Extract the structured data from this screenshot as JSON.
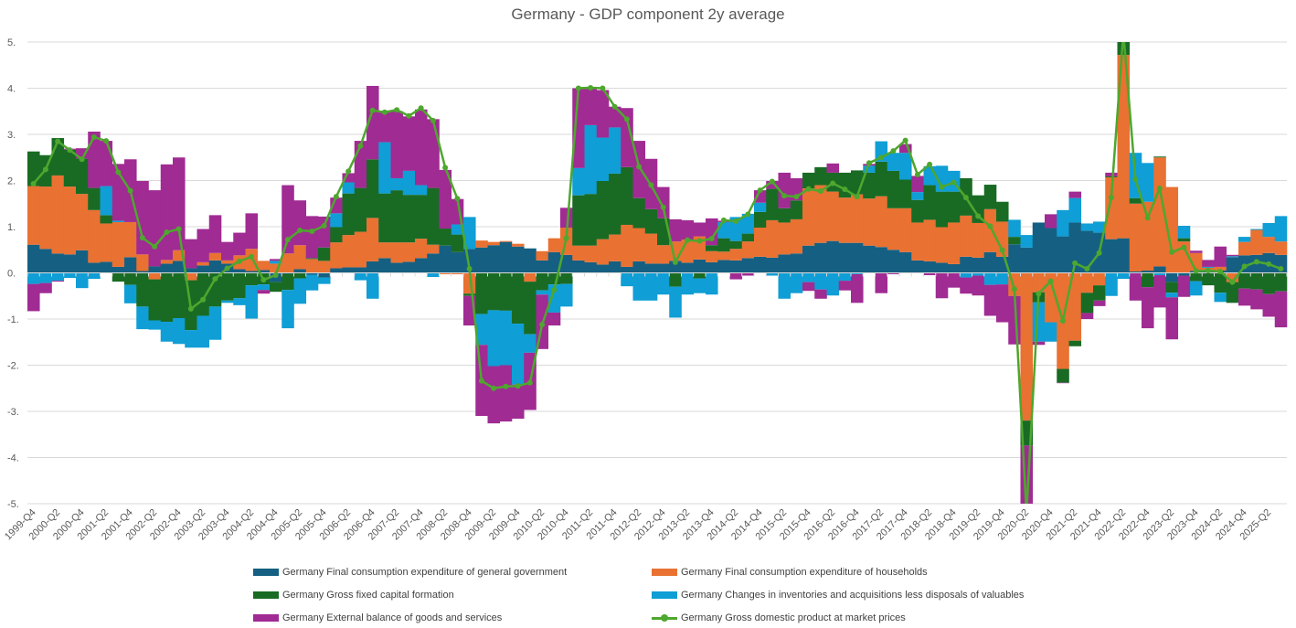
{
  "chart_data": {
    "type": "bar",
    "stacked": true,
    "title": "Germany - GDP component 2y average",
    "xlabel": "",
    "ylabel": "",
    "ylim": [
      -5,
      5
    ],
    "grid": true,
    "legend_position": "bottom",
    "y_tick_labels": [
      "5.",
      "4.",
      "3.",
      "2.",
      "1.",
      "0.",
      "-1.",
      "-2.",
      "-3.",
      "-4.",
      "-5."
    ],
    "y_tick_values": [
      5,
      4,
      3,
      2,
      1,
      0,
      -1,
      -2,
      -3,
      -4,
      -5
    ],
    "x_tick_labels": [
      "1999-Q4",
      "2000-Q2",
      "2000-Q4",
      "2001-Q2",
      "2001-Q4",
      "2002-Q2",
      "2002-Q4",
      "2003-Q2",
      "2003-Q4",
      "2004-Q2",
      "2004-Q4",
      "2005-Q2",
      "2005-Q4",
      "2006-Q2",
      "2006-Q4",
      "2007-Q2",
      "2007-Q4",
      "2008-Q2",
      "2008-Q4",
      "2009-Q2",
      "2009-Q4",
      "2010-Q2",
      "2010-Q4",
      "2011-Q2",
      "2011-Q4",
      "2012-Q2",
      "2012-Q4",
      "2013-Q2",
      "2013-Q4",
      "2014-Q2",
      "2014-Q4",
      "2015-Q2",
      "2015-Q4",
      "2016-Q2",
      "2016-Q4",
      "2017-Q2",
      "2017-Q4",
      "2018-Q2",
      "2018-Q4",
      "2019-Q2",
      "2019-Q4",
      "2020-Q2",
      "2020-Q4",
      "2021-Q2",
      "2021-Q4",
      "2022-Q2",
      "2022-Q4",
      "2023-Q2",
      "2023-Q4",
      "2024-Q2",
      "2024-Q4",
      "2025-Q2"
    ],
    "series": [
      {
        "name": "Germany Final consumption expenditure of general government",
        "kind": "bar",
        "color": "#156082",
        "values": [
          0.61,
          0.52,
          0.42,
          0.4,
          0.49,
          0.22,
          0.24,
          0.13,
          0.34,
          0.04,
          0.14,
          0.2,
          0.26,
          0.1,
          0.16,
          0.27,
          0.2,
          0.08,
          0.04,
          0.06,
          -0.2,
          -0.02,
          0.08,
          -0.04,
          -0.1,
          0.1,
          0.12,
          0.12,
          0.25,
          0.32,
          0.22,
          0.24,
          0.32,
          0.42,
          0.59,
          0.45,
          0.52,
          0.55,
          0.6,
          0.67,
          0.57,
          0.53,
          0.27,
          0.45,
          0.39,
          0.27,
          0.23,
          0.18,
          0.25,
          0.13,
          0.25,
          0.2,
          0.2,
          0.26,
          0.22,
          0.29,
          0.23,
          0.28,
          0.27,
          0.32,
          0.35,
          0.33,
          0.4,
          0.42,
          0.59,
          0.65,
          0.69,
          0.65,
          0.65,
          0.59,
          0.56,
          0.5,
          0.45,
          0.27,
          0.25,
          0.22,
          0.19,
          0.35,
          0.33,
          0.45,
          0.35,
          0.62,
          0.55,
          1.09,
          0.97,
          0.79,
          1.09,
          0.91,
          0.87,
          0.73,
          0.75,
          0.03,
          0.05,
          0.14,
          -0.2,
          -0.06,
          0.04,
          0.04,
          0.05,
          0.34,
          0.38,
          0.39,
          0.43,
          0.39
        ]
      },
      {
        "name": "Germany Final consumption expenditure of households",
        "kind": "bar",
        "color": "#E97132",
        "values": [
          1.27,
          1.35,
          1.69,
          1.47,
          1.22,
          1.14,
          0.83,
          0.97,
          0.76,
          0.36,
          -0.14,
          0.08,
          0.23,
          -0.16,
          0.07,
          0.16,
          0.07,
          0.3,
          0.48,
          0.2,
          0.2,
          0.42,
          0.52,
          0.3,
          0.26,
          0.56,
          0.7,
          0.77,
          0.94,
          0.34,
          0.44,
          0.42,
          0.42,
          0.19,
          -0.03,
          -0.03,
          -0.45,
          0.15,
          0.07,
          0.02,
          0.06,
          -0.19,
          0.2,
          0.3,
          0.59,
          0.32,
          0.36,
          0.55,
          0.58,
          0.91,
          0.72,
          0.65,
          0.4,
          0.42,
          0.5,
          0.5,
          0.24,
          0.18,
          0.25,
          0.36,
          0.63,
          0.81,
          0.69,
          0.74,
          1.24,
          1.25,
          1.07,
          0.98,
          1.05,
          1.02,
          1.1,
          0.9,
          0.95,
          0.82,
          0.9,
          0.77,
          0.9,
          0.89,
          0.75,
          0.93,
          0.76,
          -0.5,
          -3.2,
          -0.42,
          -1.07,
          -2.08,
          -1.47,
          -0.43,
          -0.27,
          1.34,
          3.97,
          1.47,
          1.49,
          2.36,
          1.86,
          0.68,
          0.39,
          0.07,
          0.08,
          -0.2,
          0.29,
          0.54,
          0.35,
          0.29
        ]
      },
      {
        "name": "Germany Gross fixed capital formation",
        "kind": "bar",
        "color": "#196B24",
        "values": [
          0.75,
          0.68,
          0.81,
          0.8,
          0.77,
          0.48,
          0.18,
          -0.19,
          -0.26,
          -0.73,
          -0.89,
          -1.06,
          -0.98,
          -1.08,
          -0.93,
          -0.73,
          -0.6,
          -0.55,
          -0.27,
          -0.25,
          -0.21,
          -0.35,
          -0.12,
          0.02,
          0.29,
          0.33,
          0.9,
          0.95,
          1.27,
          1.06,
          1.13,
          1.03,
          0.95,
          1.23,
          0.37,
          0.38,
          -0.05,
          -0.89,
          -0.81,
          -0.82,
          -1.1,
          -1.14,
          -0.38,
          -0.25,
          -0.24,
          1.09,
          1.12,
          1.26,
          1.32,
          1.25,
          0.65,
          0.53,
          0.58,
          -0.3,
          0,
          -0.12,
          0.13,
          0.29,
          0.17,
          0.17,
          0.34,
          0.68,
          0.31,
          0.41,
          0.34,
          0.39,
          0.41,
          0.54,
          0.52,
          0.56,
          0.75,
          0.81,
          0.62,
          0.49,
          0.75,
          0.77,
          0.67,
          0.81,
          0.6,
          0.53,
          0.43,
          0.16,
          -0.54,
          -0.22,
          0,
          -0.3,
          -0.12,
          -0.44,
          -0.33,
          0.02,
          0.4,
          0.12,
          -0.31,
          0.02,
          -0.23,
          0.07,
          -0.18,
          -0.27,
          -0.43,
          -0.45,
          -0.34,
          -0.36,
          -0.46,
          -0.4
        ]
      },
      {
        "name": "Germany Changes in inventories and acquisitions less disposals of valuables",
        "kind": "bar",
        "color": "#0F9ED5",
        "values": [
          -0.24,
          -0.22,
          -0.17,
          -0.11,
          -0.33,
          -0.13,
          0.63,
          0.03,
          -0.4,
          -0.49,
          -0.2,
          -0.43,
          -0.56,
          -0.38,
          -0.69,
          -0.72,
          -0.05,
          -0.15,
          -0.72,
          -0.12,
          0.06,
          -0.83,
          -0.55,
          -0.34,
          -0.14,
          0.3,
          0.24,
          -0.16,
          -0.56,
          1.11,
          0.26,
          0.52,
          0.21,
          -0.09,
          0,
          0.22,
          0.69,
          -0.67,
          -1.21,
          -1.18,
          -1.32,
          -0.4,
          -0.09,
          -0.61,
          -0.49,
          0.59,
          1.49,
          0.94,
          1.0,
          -0.29,
          -0.6,
          -0.6,
          -0.47,
          -0.67,
          -0.47,
          -0.32,
          -0.47,
          0.35,
          0.52,
          0.43,
          0.2,
          -0.06,
          -0.56,
          -0.44,
          -0.2,
          -0.36,
          -0.49,
          -0.17,
          -0.03,
          0.15,
          0.44,
          0.39,
          0.58,
          0.17,
          0.41,
          0.56,
          0.45,
          -0.1,
          -0.06,
          -0.26,
          -0.25,
          0.37,
          0.27,
          -0.85,
          -0.42,
          0.57,
          0.53,
          0.16,
          0.24,
          -0.5,
          -0.13,
          0.98,
          0.84,
          -0.05,
          -0.1,
          0.27,
          -0.31,
          0.02,
          -0.2,
          0.02,
          0.11,
          0.02,
          0.3,
          0.55
        ]
      },
      {
        "name": "Germany External balance of goods and services",
        "kind": "bar",
        "color": "#A02B93",
        "values": [
          -0.59,
          -0.22,
          -0.02,
          0.02,
          0.22,
          1.22,
          0.98,
          1.23,
          1.36,
          1.59,
          1.65,
          2.07,
          2.01,
          0.63,
          0.72,
          0.82,
          0.4,
          0.49,
          0.77,
          -0.08,
          0.04,
          1.48,
          0.97,
          0.91,
          0.67,
          0.34,
          0.2,
          1.02,
          1.59,
          0.66,
          1.45,
          1.18,
          1.64,
          1.49,
          1.27,
          0.55,
          -0.64,
          -1.54,
          -1.24,
          -1.22,
          -0.74,
          -1.24,
          -1.18,
          -0.28,
          0.43,
          1.73,
          0.8,
          1.03,
          0.45,
          1.28,
          1.24,
          1.09,
          0.68,
          0.48,
          0.42,
          0.3,
          0.58,
          0.03,
          -0.14,
          -0.06,
          0.27,
          0.17,
          0.77,
          0.48,
          -0.19,
          -0.2,
          0.2,
          -0.21,
          -0.62,
          0.04,
          -0.44,
          -0.03,
          0.19,
          0.35,
          -0.05,
          -0.55,
          -0.32,
          -0.35,
          -0.43,
          -0.67,
          -0.82,
          -1.05,
          -1.6,
          -0.07,
          0.3,
          -0.01,
          0.14,
          -0.13,
          -0.12,
          0.08,
          0.1,
          -0.6,
          -0.89,
          -0.7,
          -0.91,
          -0.46,
          0.05,
          0.15,
          0.44,
          0.03,
          -0.37,
          -0.43,
          -0.49,
          -0.78
        ]
      },
      {
        "name": "Germany Gross domestic product at market prices",
        "kind": "line",
        "color": "#4EA72E",
        "values": [
          1.93,
          2.24,
          2.85,
          2.66,
          2.46,
          2.94,
          2.86,
          2.18,
          1.78,
          0.76,
          0.57,
          0.88,
          0.95,
          -0.78,
          -0.58,
          -0.13,
          0.1,
          0.25,
          0.35,
          -0.15,
          -0.05,
          0.72,
          0.92,
          0.9,
          1.02,
          1.65,
          2.2,
          2.75,
          3.52,
          3.48,
          3.53,
          3.4,
          3.57,
          3.3,
          2.28,
          1.61,
          0.09,
          -2.34,
          -2.5,
          -2.46,
          -2.45,
          -2.38,
          -1.12,
          -0.37,
          0.75,
          4.0,
          4.01,
          4.0,
          3.6,
          3.33,
          2.3,
          1.9,
          1.42,
          0.23,
          0.71,
          0.69,
          0.74,
          1.14,
          1.12,
          1.27,
          1.79,
          1.98,
          1.67,
          1.65,
          1.82,
          1.77,
          1.94,
          1.81,
          1.65,
          2.38,
          2.5,
          2.64,
          2.87,
          2.13,
          2.35,
          1.86,
          1.96,
          1.63,
          1.23,
          1.01,
          0.49,
          -0.35,
          -5.2,
          -0.45,
          -0.18,
          -1.04,
          0.21,
          0.09,
          0.43,
          1.63,
          5.2,
          2.02,
          1.19,
          1.83,
          0.45,
          0.55,
          0.04,
          0.05,
          0.03,
          -0.2,
          0.14,
          0.24,
          0.19,
          0.09
        ]
      }
    ]
  }
}
